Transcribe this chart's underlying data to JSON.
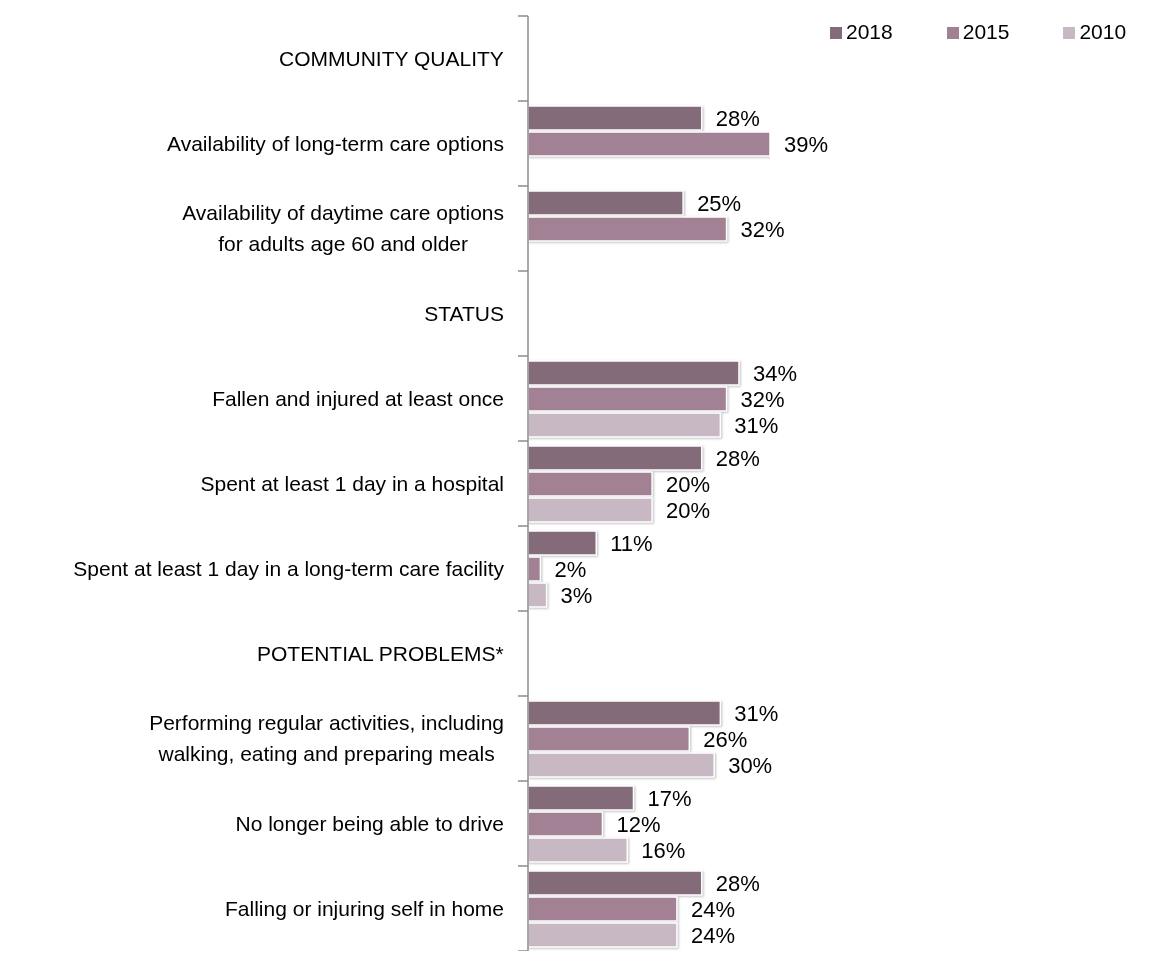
{
  "chart_data": {
    "type": "bar",
    "orientation": "horizontal",
    "legend": "top right",
    "tick_labels": "y",
    "categories": [
      "COMMUNITY QUALITY",
      "Availability of long-term care options",
      "Availability of daytime care options\nfor adults age 60 and older",
      "STATUS",
      "Fallen and injured at least once",
      "Spent at least 1 day in a hospital",
      "Spent at least 1 day in a long-term care facility",
      "POTENTIAL PROBLEMS*",
      "Performing regular activities, including\nwalking, eating and preparing meals",
      "No longer being able to drive",
      "Falling or injuring self in home"
    ],
    "series": [
      {
        "name": "2018",
        "color": "#846b7a",
        "values": [
          null,
          28,
          25,
          null,
          34,
          28,
          11,
          null,
          31,
          17,
          28
        ],
        "value_labels": [
          null,
          "28%",
          "25%",
          null,
          "34%",
          "28%",
          "11%",
          null,
          "31%",
          "17%",
          "28%"
        ]
      },
      {
        "name": "2015",
        "color": "#a38194",
        "values": [
          null,
          39,
          32,
          null,
          32,
          20,
          2,
          null,
          26,
          12,
          24
        ],
        "value_labels": [
          null,
          "39%",
          "32%",
          null,
          "32%",
          "20%",
          "2%",
          null,
          "26%",
          "12%",
          "24%"
        ]
      },
      {
        "name": "2010",
        "color": "#c8b8c3",
        "values": [
          null,
          null,
          null,
          null,
          31,
          20,
          3,
          null,
          30,
          16,
          24
        ],
        "value_labels": [
          null,
          null,
          null,
          null,
          "31%",
          "20%",
          "3%",
          null,
          "30%",
          "16%",
          "24%"
        ]
      }
    ]
  }
}
